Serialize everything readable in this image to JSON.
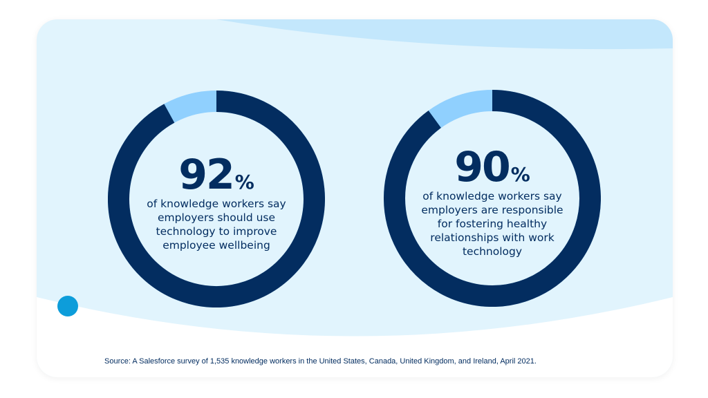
{
  "colors": {
    "card_background": "#e1f4fd",
    "top_wave": "#c3e7fc",
    "bottom_wave": "#ffffff",
    "arc_primary": "#032d60",
    "arc_remainder": "#90d0fe",
    "text": "#032d60",
    "accent_dot": "#0d9dda"
  },
  "chart_data": [
    {
      "type": "pie",
      "style": "donut",
      "categories": [
        "Say employers should use technology to improve wellbeing",
        "Remainder"
      ],
      "values": [
        92,
        8
      ],
      "unit": "%",
      "value_label": "92",
      "unit_label": "%",
      "caption": [
        "of knowledge workers say",
        "employers should use",
        "technology to improve",
        "employee wellbeing"
      ]
    },
    {
      "type": "pie",
      "style": "donut",
      "categories": [
        "Say employers are responsible for healthy relationships with work technology",
        "Remainder"
      ],
      "values": [
        90,
        10
      ],
      "unit": "%",
      "value_label": "90",
      "unit_label": "%",
      "caption": [
        "of knowledge workers say",
        "employers are responsible",
        "for fostering healthy",
        "relationships with work",
        "technology"
      ]
    }
  ],
  "source": "Source: A Salesforce survey of 1,535 knowledge workers in the United States, Canada, United Kingdom, and Ireland, April 2021."
}
